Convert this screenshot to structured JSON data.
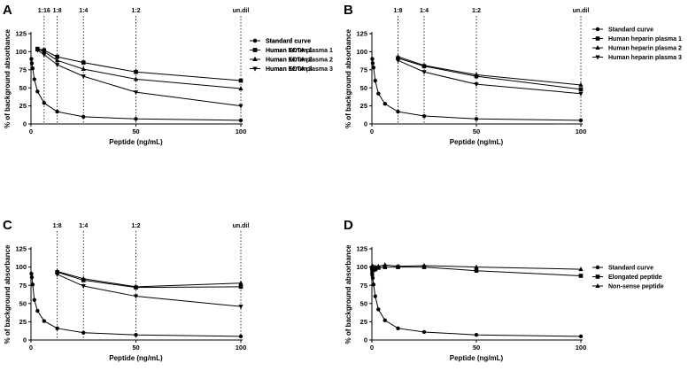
{
  "chart_data": [
    {
      "type": "line",
      "panel": "A",
      "xlabel": "Peptide (ng/mL)",
      "ylabel": "% of background absorbance",
      "xlim": [
        0,
        100
      ],
      "ylim": [
        0,
        125
      ],
      "xticks": [
        0,
        50,
        100
      ],
      "yticks": [
        0,
        25,
        50,
        75,
        100,
        125
      ],
      "grid": false,
      "legend_position": "right",
      "annotations": [
        {
          "text": "1:16",
          "x": 6.25
        },
        {
          "text": "1:8",
          "x": 12.5
        },
        {
          "text": "1:4",
          "x": 25
        },
        {
          "text": "1:2",
          "x": 50
        },
        {
          "text": "un.dil",
          "x": 100
        }
      ],
      "series": [
        {
          "name": "Standard curve",
          "marker": "circle",
          "x": [
            0.2,
            0.4,
            0.8,
            1.6,
            3.1,
            6.25,
            12.5,
            25,
            50,
            100
          ],
          "y": [
            90,
            84,
            77,
            62,
            45,
            29,
            17,
            10,
            7,
            5
          ]
        },
        {
          "name": "Human serum 1",
          "marker": "square",
          "x": [
            3.1,
            6.25,
            12.5,
            25,
            50,
            100
          ],
          "y": [
            104,
            102,
            93,
            85,
            72,
            60
          ]
        },
        {
          "name": "Human serum 2",
          "marker": "triangle-up",
          "x": [
            3.1,
            6.25,
            12.5,
            25,
            50,
            100
          ],
          "y": [
            103,
            100,
            88,
            76,
            62,
            49
          ]
        },
        {
          "name": "Human serum 3",
          "marker": "triangle-down",
          "x": [
            3.1,
            6.25,
            12.5,
            25,
            50,
            100
          ],
          "y": [
            102,
            96,
            82,
            66,
            44,
            25
          ]
        }
      ]
    },
    {
      "type": "line",
      "panel": "B",
      "xlabel": "Peptide (ng/mL)",
      "ylabel": "% of background absorbance",
      "xlim": [
        0,
        100
      ],
      "ylim": [
        0,
        125
      ],
      "xticks": [
        0,
        50,
        100
      ],
      "yticks": [
        0,
        25,
        50,
        75,
        100,
        125
      ],
      "grid": false,
      "legend_position": "right",
      "annotations": [
        {
          "text": "1:8",
          "x": 12.5
        },
        {
          "text": "1:4",
          "x": 25
        },
        {
          "text": "1:2",
          "x": 50
        },
        {
          "text": "un.dil",
          "x": 100
        }
      ],
      "series": [
        {
          "name": "Standard curve",
          "marker": "circle",
          "x": [
            0.2,
            0.4,
            0.8,
            1.6,
            3.1,
            6.25,
            12.5,
            25,
            50,
            100
          ],
          "y": [
            90,
            84,
            78,
            60,
            42,
            28,
            17,
            11,
            7,
            5
          ]
        },
        {
          "name": "Human heparin plasma 1",
          "marker": "square",
          "x": [
            12.5,
            25,
            50,
            100
          ],
          "y": [
            91,
            80,
            66,
            48
          ]
        },
        {
          "name": "Human heparin plasma 2",
          "marker": "triangle-up",
          "x": [
            12.5,
            25,
            50,
            100
          ],
          "y": [
            93,
            81,
            68,
            54
          ]
        },
        {
          "name": "Human heparin plasma 3",
          "marker": "triangle-down",
          "x": [
            12.5,
            25,
            50,
            100
          ],
          "y": [
            88,
            72,
            55,
            42
          ]
        }
      ]
    },
    {
      "type": "line",
      "panel": "C",
      "xlabel": "Peptide (ng/mL)",
      "ylabel": "% of background absorbance",
      "xlim": [
        0,
        100
      ],
      "ylim": [
        0,
        125
      ],
      "xticks": [
        0,
        50,
        100
      ],
      "yticks": [
        0,
        25,
        50,
        75,
        100,
        125
      ],
      "grid": false,
      "legend_position": "right",
      "annotations": [
        {
          "text": "1:8",
          "x": 12.5
        },
        {
          "text": "1:4",
          "x": 25
        },
        {
          "text": "1:2",
          "x": 50
        },
        {
          "text": "un.dil",
          "x": 100
        }
      ],
      "series": [
        {
          "name": "Standard curve",
          "marker": "circle",
          "x": [
            0.2,
            0.4,
            0.8,
            1.6,
            3.1,
            6.25,
            12.5,
            25,
            50,
            100
          ],
          "y": [
            91,
            86,
            76,
            55,
            40,
            26,
            16,
            10,
            7,
            5
          ]
        },
        {
          "name": "Human EDTA plasma 1",
          "marker": "square",
          "x": [
            12.5,
            25,
            50,
            100
          ],
          "y": [
            93,
            82,
            72,
            73
          ]
        },
        {
          "name": "Human EDTA plasma 2",
          "marker": "triangle-up",
          "x": [
            12.5,
            25,
            50,
            100
          ],
          "y": [
            94,
            84,
            73,
            78
          ]
        },
        {
          "name": "Human EDTA plasma 3",
          "marker": "triangle-down",
          "x": [
            12.5,
            25,
            50,
            100
          ],
          "y": [
            90,
            74,
            60,
            46
          ]
        }
      ]
    },
    {
      "type": "line",
      "panel": "D",
      "xlabel": "Peptide (ng/mL)",
      "ylabel": "% of background absorbance",
      "xlim": [
        0,
        100
      ],
      "ylim": [
        0,
        125
      ],
      "xticks": [
        0,
        50,
        100
      ],
      "yticks": [
        0,
        25,
        50,
        75,
        100,
        125
      ],
      "grid": false,
      "legend_position": "right",
      "annotations": [],
      "series": [
        {
          "name": "Standard curve",
          "marker": "circle",
          "x": [
            0.1,
            0.2,
            0.4,
            0.8,
            1.6,
            3.1,
            6.25,
            12.5,
            25,
            50,
            100
          ],
          "y": [
            92,
            89,
            85,
            76,
            60,
            42,
            27,
            16,
            11,
            7,
            5
          ]
        },
        {
          "name": "Elongated peptide",
          "marker": "square",
          "x": [
            0.1,
            0.2,
            0.4,
            0.8,
            1.6,
            3.1,
            6.25,
            12.5,
            25,
            50,
            100
          ],
          "y": [
            99,
            97,
            98,
            96,
            97,
            99,
            100,
            100,
            100,
            95,
            88
          ]
        },
        {
          "name": "Non-sense peptide",
          "marker": "triangle-up",
          "x": [
            0.1,
            0.2,
            0.4,
            0.8,
            1.6,
            3.1,
            6.25,
            12.5,
            25,
            50,
            100
          ],
          "y": [
            101,
            100,
            101,
            100,
            100,
            101,
            103,
            101,
            102,
            100,
            97
          ]
        }
      ]
    }
  ]
}
